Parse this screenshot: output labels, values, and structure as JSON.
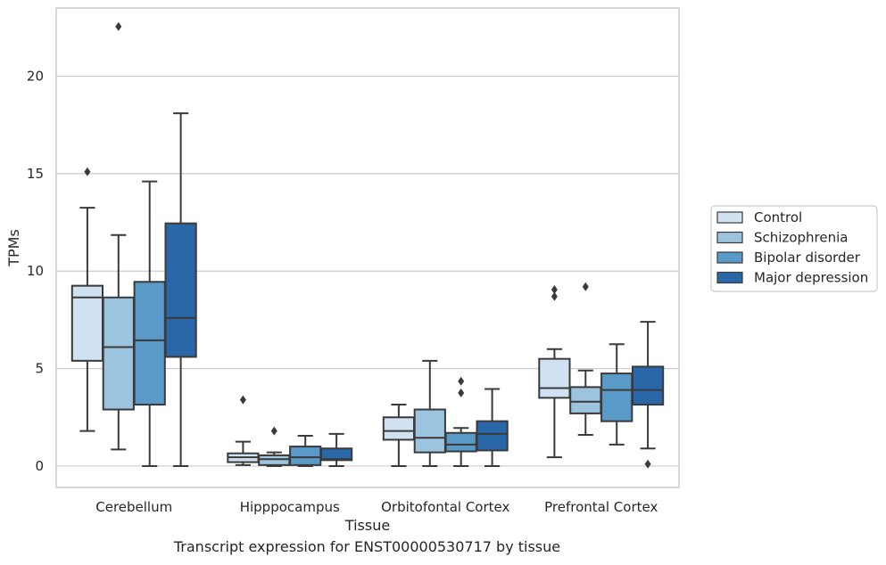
{
  "caption": "Transcript expression for ENST00000530717 by tissue",
  "chart_data": {
    "type": "box",
    "xlabel": "Tissue",
    "ylabel": "TPMs",
    "ylim": [
      -1.1,
      23.5
    ],
    "yticks": [
      0,
      5,
      10,
      15,
      20
    ],
    "grid": "horizontal",
    "legend_position": "right",
    "categories": [
      "Cerebellum",
      "Hipppocampus",
      "Orbitofontal Cortex",
      "Prefrontal Cortex"
    ],
    "series": [
      {
        "name": "Control",
        "color": "#d0e1f2",
        "boxes": [
          {
            "whisker_low": 1.8,
            "q1": 5.4,
            "median": 8.65,
            "q3": 9.25,
            "whisker_high": 13.25,
            "outliers": [
              15.1
            ]
          },
          {
            "whisker_low": 0.05,
            "q1": 0.2,
            "median": 0.45,
            "q3": 0.65,
            "whisker_high": 1.25,
            "outliers": [
              3.4
            ]
          },
          {
            "whisker_low": 0.0,
            "q1": 1.35,
            "median": 1.8,
            "q3": 2.5,
            "whisker_high": 3.15,
            "outliers": []
          },
          {
            "whisker_low": 0.45,
            "q1": 3.5,
            "median": 4.0,
            "q3": 5.5,
            "whisker_high": 6.0,
            "outliers": [
              8.7,
              9.05
            ]
          }
        ]
      },
      {
        "name": "Schizophrenia",
        "color": "#9cc4df",
        "boxes": [
          {
            "whisker_low": 0.85,
            "q1": 2.9,
            "median": 6.1,
            "q3": 8.65,
            "whisker_high": 11.85,
            "outliers": [
              22.55
            ]
          },
          {
            "whisker_low": 0.0,
            "q1": 0.05,
            "median": 0.35,
            "q3": 0.55,
            "whisker_high": 0.7,
            "outliers": [
              1.8
            ]
          },
          {
            "whisker_low": 0.0,
            "q1": 0.7,
            "median": 1.45,
            "q3": 2.9,
            "whisker_high": 5.4,
            "outliers": []
          },
          {
            "whisker_low": 1.6,
            "q1": 2.7,
            "median": 3.3,
            "q3": 4.05,
            "whisker_high": 4.9,
            "outliers": [
              9.2
            ]
          }
        ]
      },
      {
        "name": "Bipolar disorder",
        "color": "#5a9ac8",
        "boxes": [
          {
            "whisker_low": 0.0,
            "q1": 3.15,
            "median": 6.45,
            "q3": 9.45,
            "whisker_high": 14.6,
            "outliers": []
          },
          {
            "whisker_low": 0.0,
            "q1": 0.05,
            "median": 0.45,
            "q3": 1.0,
            "whisker_high": 1.55,
            "outliers": []
          },
          {
            "whisker_low": 0.0,
            "q1": 0.75,
            "median": 1.1,
            "q3": 1.7,
            "whisker_high": 1.95,
            "outliers": [
              3.75,
              4.35
            ]
          },
          {
            "whisker_low": 1.1,
            "q1": 2.3,
            "median": 3.9,
            "q3": 4.75,
            "whisker_high": 6.25,
            "outliers": []
          }
        ]
      },
      {
        "name": "Major depression",
        "color": "#2967a9",
        "boxes": [
          {
            "whisker_low": 0.0,
            "q1": 5.6,
            "median": 7.6,
            "q3": 12.45,
            "whisker_high": 18.1,
            "outliers": []
          },
          {
            "whisker_low": 0.0,
            "q1": 0.3,
            "median": 0.35,
            "q3": 0.9,
            "whisker_high": 1.65,
            "outliers": []
          },
          {
            "whisker_low": 0.0,
            "q1": 0.8,
            "median": 1.65,
            "q3": 2.3,
            "whisker_high": 3.95,
            "outliers": []
          },
          {
            "whisker_low": 0.9,
            "q1": 3.15,
            "median": 3.9,
            "q3": 5.1,
            "whisker_high": 7.4,
            "outliers": [
              0.1
            ]
          }
        ]
      }
    ]
  }
}
